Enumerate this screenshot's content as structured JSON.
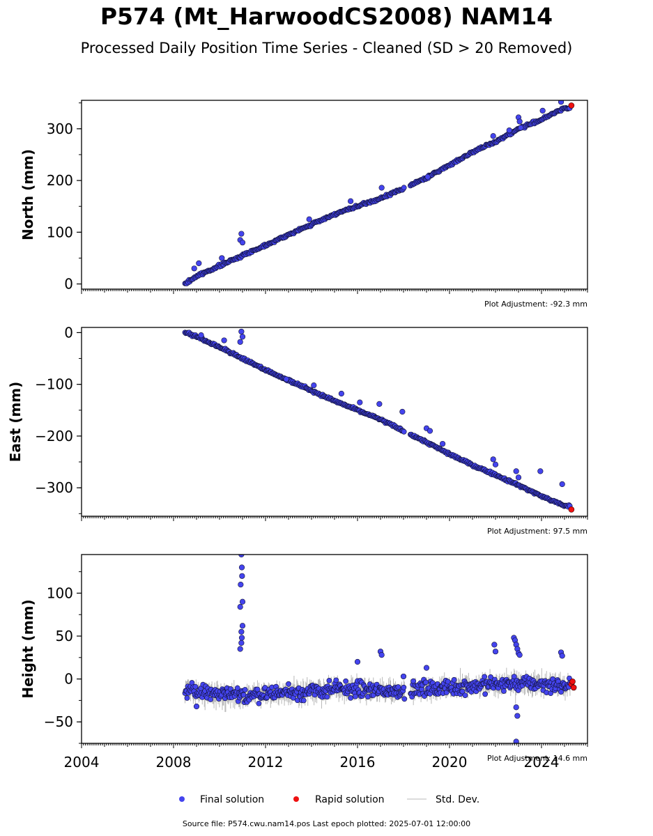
{
  "title": "P574 (Mt_HarwoodCS2008) NAM14",
  "subtitle": "Processed Daily Position Time Series - Cleaned (SD > 20 Removed)",
  "footer": "Source file: P574.cwu.nam14.pos  Last epoch plotted: 2025-07-01 12:00:00",
  "legend": [
    {
      "label": "Final solution",
      "color": "#4444ee"
    },
    {
      "label": "Rapid solution",
      "color": "#ee1111"
    },
    {
      "label": "Std. Dev.",
      "color": "#c8c8c8"
    }
  ],
  "colors": {
    "final": "#4444ee",
    "rapid": "#ee1111",
    "stddev": "#b8b8b8",
    "edge": "#111133"
  },
  "chart_data": [
    {
      "type": "scatter",
      "ylabel": "North (mm)",
      "adjustment": "Plot Adjustment: -92.3 mm",
      "xlim": [
        2004,
        2026
      ],
      "ylim": [
        -10,
        355
      ],
      "yticks": [
        0,
        100,
        200,
        300
      ],
      "ytick_labels": [
        "0",
        "100",
        "200",
        "300"
      ],
      "series": [
        {
          "values": [
            [
              2008.5,
              0
            ],
            [
              2009.0,
              15
            ],
            [
              2010.0,
              35
            ],
            [
              2011.0,
              55
            ],
            [
              2012.0,
              75
            ],
            [
              2013.0,
              95
            ],
            [
              2014.0,
              115
            ],
            [
              2015.0,
              135
            ],
            [
              2016.0,
              150
            ],
            [
              2017.0,
              165
            ],
            [
              2018.0,
              185
            ],
            [
              2019.0,
              205
            ],
            [
              2020.0,
              230
            ],
            [
              2021.0,
              255
            ],
            [
              2022.0,
              275
            ],
            [
              2023.0,
              300
            ],
            [
              2024.0,
              318
            ],
            [
              2025.0,
              340
            ]
          ]
        },
        {
          "values": [
            [
              2025.3,
              345
            ]
          ]
        }
      ],
      "outliers": [
        [
          2008.9,
          30
        ],
        [
          2009.1,
          40
        ],
        [
          2010.1,
          50
        ],
        [
          2010.95,
          97
        ],
        [
          2010.9,
          85
        ],
        [
          2011.0,
          80
        ],
        [
          2013.9,
          125
        ],
        [
          2015.7,
          160
        ],
        [
          2017.05,
          186
        ],
        [
          2019.05,
          207
        ],
        [
          2021.9,
          286
        ],
        [
          2022.6,
          297
        ],
        [
          2023.0,
          322
        ],
        [
          2023.05,
          314
        ],
        [
          2023.1,
          302
        ],
        [
          2024.05,
          335
        ],
        [
          2024.85,
          352
        ]
      ]
    },
    {
      "type": "scatter",
      "ylabel": "East (mm)",
      "adjustment": "Plot Adjustment: 97.5 mm",
      "xlim": [
        2004,
        2026
      ],
      "ylim": [
        -355,
        10
      ],
      "yticks": [
        0,
        -100,
        -200,
        -300
      ],
      "ytick_labels": [
        "0",
        "−100",
        "−200",
        "−300"
      ],
      "series": [
        {
          "values": [
            [
              2008.5,
              0
            ],
            [
              2009.0,
              -8
            ],
            [
              2010.0,
              -28
            ],
            [
              2011.0,
              -50
            ],
            [
              2012.0,
              -72
            ],
            [
              2013.0,
              -92
            ],
            [
              2014.0,
              -112
            ],
            [
              2015.0,
              -132
            ],
            [
              2016.0,
              -150
            ],
            [
              2017.0,
              -168
            ],
            [
              2018.0,
              -190
            ],
            [
              2019.0,
              -212
            ],
            [
              2020.0,
              -235
            ],
            [
              2021.0,
              -256
            ],
            [
              2022.0,
              -275
            ],
            [
              2023.0,
              -295
            ],
            [
              2024.0,
              -316
            ],
            [
              2025.0,
              -335
            ]
          ]
        },
        {
          "values": [
            [
              2025.3,
              -342
            ]
          ]
        }
      ],
      "outliers": [
        [
          2009.2,
          -5
        ],
        [
          2010.2,
          -15
        ],
        [
          2010.95,
          2
        ],
        [
          2010.9,
          -18
        ],
        [
          2011.0,
          -8
        ],
        [
          2012.9,
          -90
        ],
        [
          2014.1,
          -102
        ],
        [
          2015.3,
          -118
        ],
        [
          2016.1,
          -135
        ],
        [
          2016.95,
          -138
        ],
        [
          2017.95,
          -153
        ],
        [
          2019.0,
          -185
        ],
        [
          2019.15,
          -190
        ],
        [
          2019.7,
          -215
        ],
        [
          2021.9,
          -245
        ],
        [
          2022.0,
          -255
        ],
        [
          2022.9,
          -268
        ],
        [
          2023.0,
          -280
        ],
        [
          2023.95,
          -268
        ],
        [
          2024.9,
          -293
        ]
      ]
    },
    {
      "type": "scatter",
      "ylabel": "Height (mm)",
      "adjustment": "Plot Adjustment: 14.6 mm",
      "xlim": [
        2004,
        2026
      ],
      "ylim": [
        -75,
        145
      ],
      "yticks": [
        100,
        50,
        0,
        -50
      ],
      "ytick_labels": [
        "100",
        "50",
        "0",
        "−50"
      ],
      "xticks": [
        2004,
        2008,
        2012,
        2016,
        2020,
        2024
      ],
      "xtick_labels": [
        "2004",
        "2008",
        "2012",
        "2016",
        "2020",
        "2024"
      ],
      "series": [
        {
          "values": [
            [
              2008.5,
              -12
            ],
            [
              2009.0,
              -15
            ],
            [
              2010.0,
              -18
            ],
            [
              2011.0,
              -20
            ],
            [
              2012.0,
              -17
            ],
            [
              2013.0,
              -15
            ],
            [
              2014.0,
              -15
            ],
            [
              2015.0,
              -12
            ],
            [
              2016.0,
              -12
            ],
            [
              2017.0,
              -14
            ],
            [
              2018.0,
              -13
            ],
            [
              2019.0,
              -11
            ],
            [
              2020.0,
              -10
            ],
            [
              2021.0,
              -8
            ],
            [
              2022.0,
              -6
            ],
            [
              2023.0,
              -5
            ],
            [
              2024.0,
              -6
            ],
            [
              2025.0,
              -8
            ]
          ]
        },
        {
          "values": [
            [
              2025.3,
              -6
            ],
            [
              2025.35,
              -3
            ],
            [
              2025.4,
              -10
            ]
          ]
        }
      ],
      "outliers": [
        [
          2010.95,
          145
        ],
        [
          2010.97,
          130
        ],
        [
          2010.98,
          120
        ],
        [
          2010.92,
          110
        ],
        [
          2011.0,
          90
        ],
        [
          2010.9,
          84
        ],
        [
          2011.0,
          62
        ],
        [
          2010.95,
          55
        ],
        [
          2010.97,
          48
        ],
        [
          2010.95,
          42
        ],
        [
          2010.9,
          35
        ],
        [
          2017.0,
          32
        ],
        [
          2017.05,
          28
        ],
        [
          2018.0,
          3
        ],
        [
          2019.0,
          13
        ],
        [
          2021.95,
          40
        ],
        [
          2022.0,
          32
        ],
        [
          2022.8,
          48
        ],
        [
          2022.85,
          45
        ],
        [
          2022.9,
          40
        ],
        [
          2022.95,
          35
        ],
        [
          2023.0,
          30
        ],
        [
          2023.05,
          28
        ],
        [
          2022.9,
          -33
        ],
        [
          2022.95,
          -43
        ],
        [
          2022.9,
          -73
        ],
        [
          2024.85,
          31
        ],
        [
          2024.9,
          27
        ],
        [
          2016.0,
          20
        ],
        [
          2009.0,
          -32
        ]
      ]
    }
  ]
}
